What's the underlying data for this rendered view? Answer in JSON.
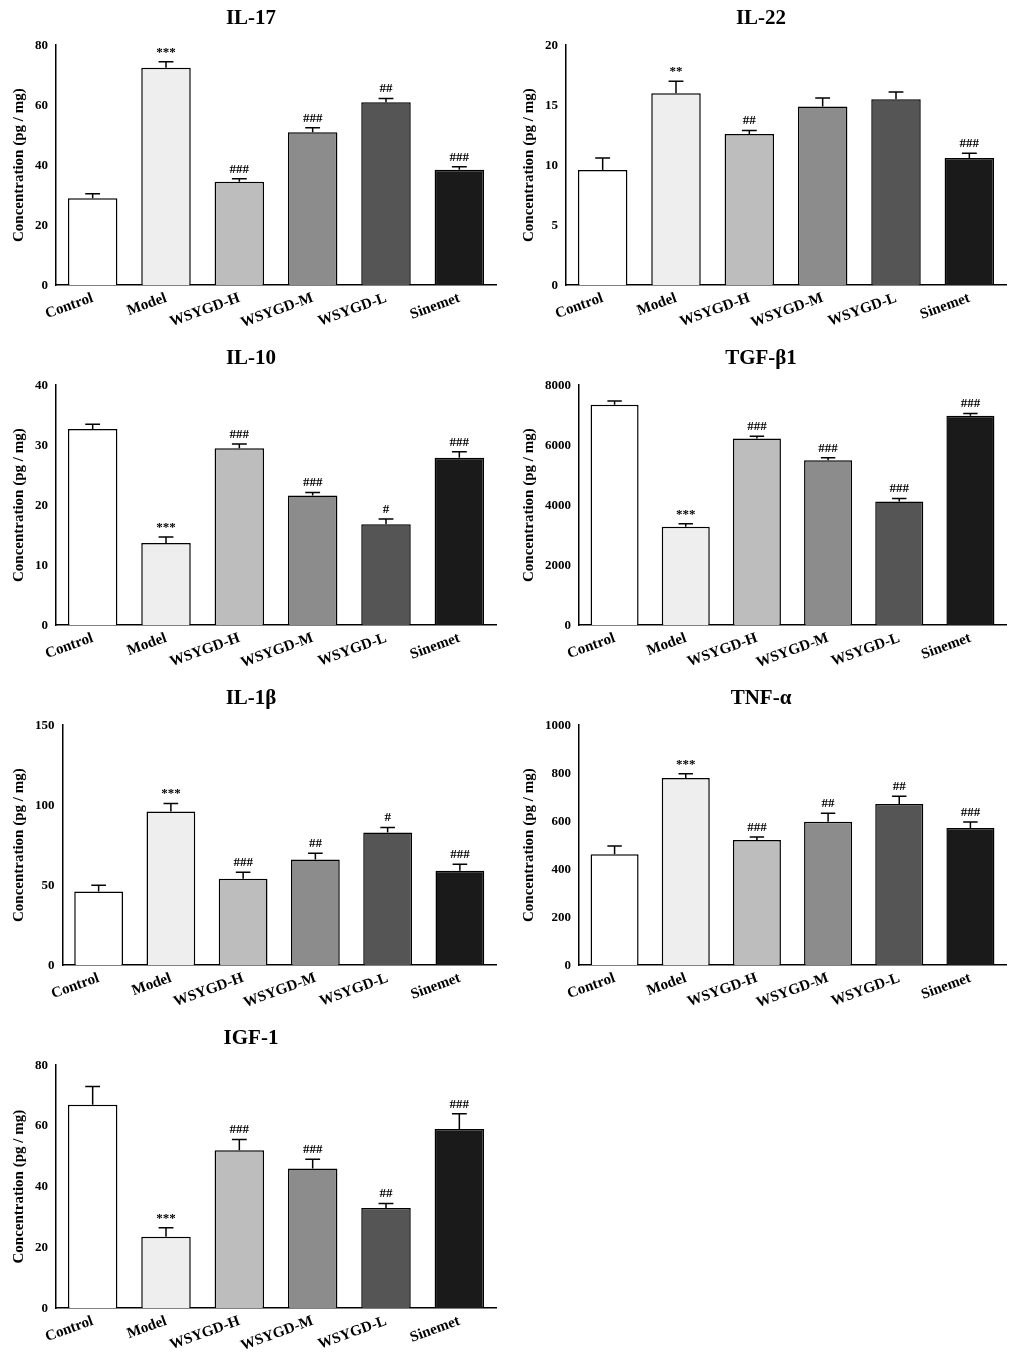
{
  "chart_data": [
    {
      "type": "bar",
      "title": "IL-17",
      "y_label": "Concentration (pg / mg)",
      "categories": [
        "Control",
        "Model",
        "WSYGD-H",
        "WSYGD-M",
        "WSYGD-L",
        "Sinemet"
      ],
      "values": [
        29,
        72.5,
        34.5,
        51,
        61,
        38.5
      ],
      "errors": [
        1.5,
        2,
        1,
        1.5,
        1.2,
        1
      ],
      "annotations": [
        null,
        "***",
        "###",
        "###",
        "##",
        "###"
      ],
      "colors": [
        "#ffffff",
        "#eeeeee",
        "#bdbdbd",
        "#8c8c8c",
        "#555555",
        "#1a1a1a"
      ],
      "ylim": [
        0,
        80
      ],
      "yticks": [
        0,
        20,
        40,
        60,
        80
      ],
      "grid": false
    },
    {
      "type": "bar",
      "title": "IL-22",
      "y_label": "Concentration (pg / mg)",
      "categories": [
        "Control",
        "Model",
        "WSYGD-H",
        "WSYGD-M",
        "WSYGD-L",
        "Sinemet"
      ],
      "values": [
        9.6,
        16,
        12.6,
        14.9,
        15.5,
        10.6
      ],
      "errors": [
        1,
        1,
        0.3,
        0.7,
        0.6,
        0.4
      ],
      "annotations": [
        null,
        "**",
        "##",
        null,
        null,
        "###"
      ],
      "colors": [
        "#ffffff",
        "#eeeeee",
        "#bdbdbd",
        "#8c8c8c",
        "#555555",
        "#1a1a1a"
      ],
      "ylim": [
        0,
        20
      ],
      "yticks": [
        0,
        5,
        10,
        15,
        20
      ],
      "grid": false
    },
    {
      "type": "bar",
      "title": "IL-10",
      "y_label": "Concentration (pg / mg)",
      "categories": [
        "Control",
        "Model",
        "WSYGD-H",
        "WSYGD-M",
        "WSYGD-L",
        "Sinemet"
      ],
      "values": [
        32.7,
        13.7,
        29.5,
        21.6,
        16.8,
        27.9
      ],
      "errors": [
        0.8,
        1,
        0.7,
        0.5,
        0.9,
        1
      ],
      "annotations": [
        null,
        "***",
        "###",
        "###",
        "#",
        "###"
      ],
      "colors": [
        "#ffffff",
        "#eeeeee",
        "#bdbdbd",
        "#8c8c8c",
        "#555555",
        "#1a1a1a"
      ],
      "ylim": [
        0,
        40
      ],
      "yticks": [
        0,
        10,
        20,
        30,
        40
      ],
      "grid": false
    },
    {
      "type": "bar",
      "title": "TGF-β1",
      "y_label": "Concentration (pg / mg)",
      "categories": [
        "Control",
        "Model",
        "WSYGD-H",
        "WSYGD-M",
        "WSYGD-L",
        "Sinemet"
      ],
      "values": [
        7350,
        3280,
        6220,
        5500,
        4120,
        6980
      ],
      "errors": [
        120,
        100,
        80,
        80,
        100,
        80
      ],
      "annotations": [
        null,
        "***",
        "###",
        "###",
        "###",
        "###"
      ],
      "colors": [
        "#ffffff",
        "#eeeeee",
        "#bdbdbd",
        "#8c8c8c",
        "#555555",
        "#1a1a1a"
      ],
      "ylim": [
        0,
        8000
      ],
      "yticks": [
        0,
        2000,
        4000,
        6000,
        8000
      ],
      "grid": false
    },
    {
      "type": "bar",
      "title": "IL-1β",
      "y_label": "Concentration (pg / mg)",
      "categories": [
        "Control",
        "Model",
        "WSYGD-H",
        "WSYGD-M",
        "WSYGD-L",
        "Sinemet"
      ],
      "values": [
        46,
        96,
        54,
        66,
        83,
        59
      ],
      "errors": [
        4,
        5,
        4,
        4,
        3,
        4
      ],
      "annotations": [
        null,
        "***",
        "###",
        "##",
        "#",
        "###"
      ],
      "colors": [
        "#ffffff",
        "#eeeeee",
        "#bdbdbd",
        "#8c8c8c",
        "#555555",
        "#1a1a1a"
      ],
      "ylim": [
        0,
        150
      ],
      "yticks": [
        0,
        50,
        100,
        150
      ],
      "grid": false
    },
    {
      "type": "bar",
      "title": "TNF-α",
      "y_label": "Concentration (pg / mg)",
      "categories": [
        "Control",
        "Model",
        "WSYGD-H",
        "WSYGD-M",
        "WSYGD-L",
        "Sinemet"
      ],
      "values": [
        462,
        780,
        522,
        598,
        672,
        572
      ],
      "errors": [
        35,
        18,
        12,
        35,
        32,
        25
      ],
      "annotations": [
        null,
        "***",
        "###",
        "##",
        "##",
        "###"
      ],
      "colors": [
        "#ffffff",
        "#eeeeee",
        "#bdbdbd",
        "#8c8c8c",
        "#555555",
        "#1a1a1a"
      ],
      "ylim": [
        0,
        1000
      ],
      "yticks": [
        0,
        200,
        400,
        600,
        800,
        1000
      ],
      "grid": false
    },
    {
      "type": "bar",
      "title": "IGF-1",
      "y_label": "Concentration (pg / mg)",
      "categories": [
        "Control",
        "Model",
        "WSYGD-H",
        "WSYGD-M",
        "WSYGD-L",
        "Sinemet"
      ],
      "values": [
        67,
        23.5,
        52,
        46,
        33,
        59
      ],
      "errors": [
        6,
        3,
        3.5,
        3,
        1.5,
        5
      ],
      "annotations": [
        null,
        "***",
        "###",
        "###",
        "##",
        "###"
      ],
      "colors": [
        "#ffffff",
        "#eeeeee",
        "#bdbdbd",
        "#8c8c8c",
        "#555555",
        "#1a1a1a"
      ],
      "ylim": [
        0,
        80
      ],
      "yticks": [
        0,
        20,
        40,
        60,
        80
      ],
      "grid": false
    }
  ]
}
